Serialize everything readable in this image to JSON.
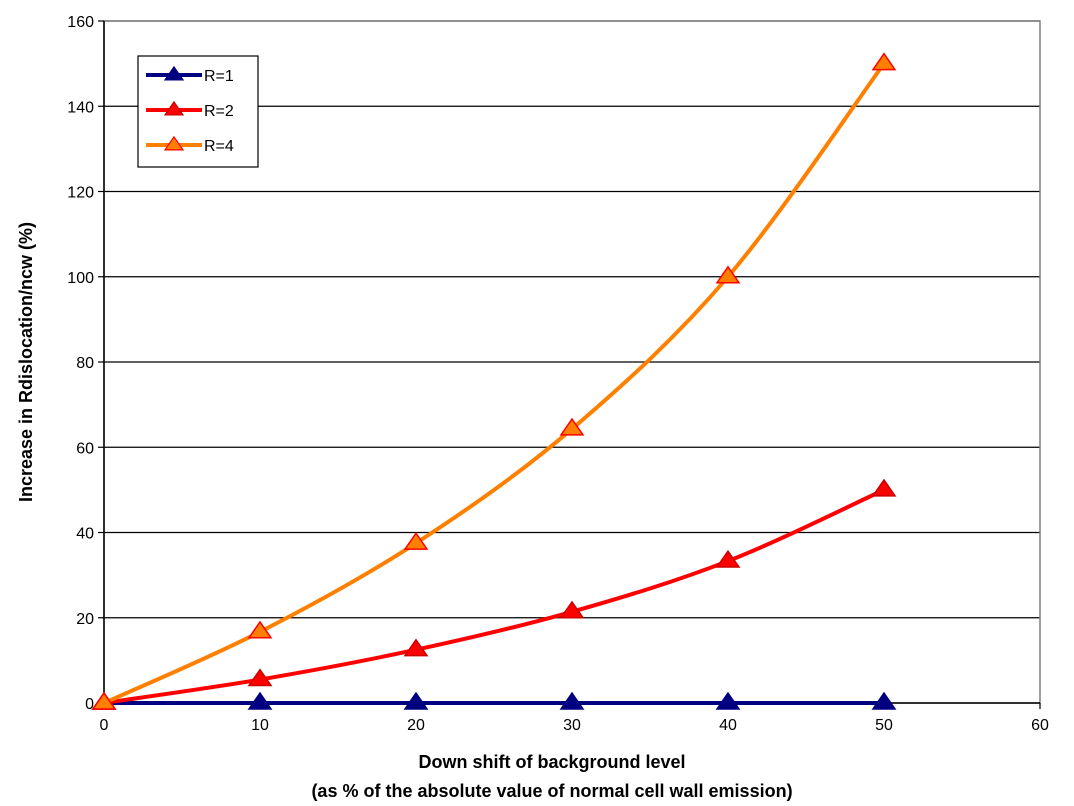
{
  "chart_data": {
    "type": "line",
    "x": [
      0,
      10,
      20,
      30,
      40,
      50
    ],
    "xlabel": [
      "Down shift of background level",
      "(as % of the absolute value of normal cell wall emission)"
    ],
    "ylabel": "Increase in Rdislocation/ncw (%)",
    "xlim": [
      0,
      60
    ],
    "ylim": [
      0,
      160
    ],
    "xticks": [
      0,
      10,
      20,
      30,
      40,
      50,
      60
    ],
    "yticks": [
      0,
      20,
      40,
      60,
      80,
      100,
      120,
      140,
      160
    ],
    "grid": "horizontal",
    "legend_position": "top-left",
    "series": [
      {
        "name": "R=1",
        "values": [
          0,
          0,
          0,
          0,
          0,
          0
        ],
        "color": "#000080",
        "marker_fill": "#000080",
        "marker_stroke": "#000080"
      },
      {
        "name": "R=2",
        "values": [
          0,
          5.5,
          12.5,
          21.4,
          33.3,
          50
        ],
        "color": "#ff0000",
        "marker_fill": "#ff0000",
        "marker_stroke": "#cc0000"
      },
      {
        "name": "R=4",
        "values": [
          0,
          16.7,
          37.5,
          64.3,
          100,
          150
        ],
        "color": "#ff8000",
        "marker_fill": "#ff8000",
        "marker_stroke": "#ff0000"
      }
    ]
  }
}
